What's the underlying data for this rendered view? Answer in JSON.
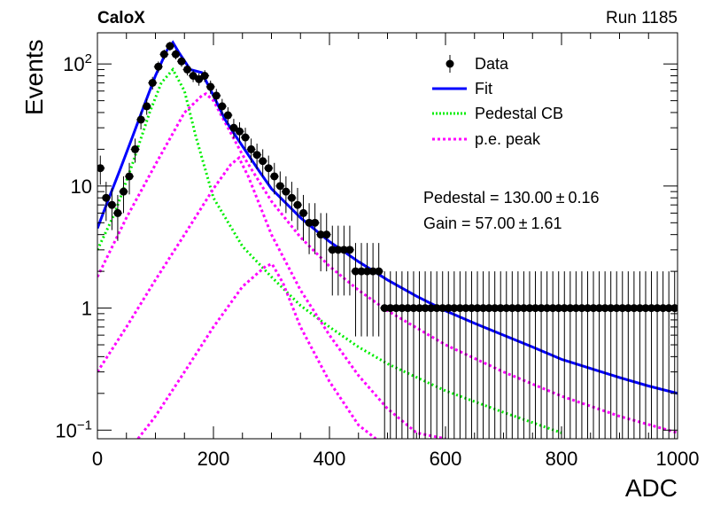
{
  "header": {
    "experiment": "CaloX",
    "run": "Run 1185"
  },
  "colors": {
    "data": "#000000",
    "fit": "#0000ff",
    "pedestal": "#00ee00",
    "pe_peak": "#ff00ff"
  },
  "legend": [
    {
      "label": "Data",
      "style": "marker"
    },
    {
      "label": "Fit",
      "style": "solid"
    },
    {
      "label": "Pedestal CB",
      "style": "dotted-green"
    },
    {
      "label": "p.e. peak",
      "style": "dotted-magenta"
    }
  ],
  "fit_results": {
    "pedestal_label": "Pedestal = 130.00",
    "pedestal_err": "0.16",
    "gain_label": "Gain = 57.00",
    "gain_err": "1.61",
    "pm_symbol": "±"
  },
  "chart_data": {
    "type": "scatter",
    "xlabel": "ADC",
    "ylabel": "Events",
    "xlim": [
      0,
      1000
    ],
    "ylim": [
      0.085,
      180
    ],
    "yscale": "log",
    "grid": false,
    "legend_position": "top-right",
    "x_ticks": [
      "0",
      "200",
      "400",
      "600",
      "800",
      "1000"
    ],
    "y_ticks": [
      {
        "value": 0.1,
        "mantissa": "10",
        "exp": "−1"
      },
      {
        "value": 1,
        "mantissa": "1",
        "exp": ""
      },
      {
        "value": 10,
        "mantissa": "10",
        "exp": ""
      },
      {
        "value": 100,
        "mantissa": "10",
        "exp": "2"
      }
    ],
    "series": [
      {
        "name": "Data",
        "kind": "points",
        "x": [
          5,
          15,
          25,
          35,
          45,
          55,
          65,
          75,
          85,
          95,
          105,
          115,
          125,
          135,
          145,
          155,
          165,
          175,
          185,
          195,
          205,
          215,
          225,
          235,
          245,
          255,
          265,
          275,
          285,
          295,
          305,
          315,
          325,
          335,
          345,
          355,
          365,
          375,
          385,
          395,
          405,
          415,
          425,
          435,
          445,
          455,
          465,
          475,
          485,
          495,
          505,
          515,
          525,
          535,
          545,
          555,
          565,
          575,
          585,
          595,
          605,
          615,
          625,
          635,
          645,
          655,
          665,
          675,
          685,
          695,
          705,
          715,
          725,
          735,
          745,
          755,
          765,
          775,
          785,
          795,
          805,
          815,
          825,
          835,
          845,
          855,
          865,
          875,
          885,
          895,
          905,
          915,
          925,
          935,
          945,
          955,
          965,
          975,
          985,
          995
        ],
        "y": [
          14,
          8,
          7,
          6,
          9,
          12,
          20,
          35,
          45,
          70,
          95,
          120,
          140,
          120,
          105,
          90,
          80,
          75,
          80,
          65,
          55,
          45,
          38,
          30,
          28,
          25,
          20,
          18,
          16,
          14,
          12,
          10,
          9,
          8,
          7,
          6,
          5,
          5,
          4,
          4,
          3,
          3,
          3,
          3,
          2,
          2,
          2,
          2,
          2,
          1,
          1,
          1,
          1,
          1,
          1,
          1,
          1,
          1,
          1,
          1,
          1,
          1,
          1,
          1,
          1,
          1,
          1,
          1,
          1,
          1,
          1,
          1,
          1,
          1,
          1,
          1,
          1,
          1,
          1,
          1,
          1,
          1,
          1,
          1,
          1,
          1,
          1,
          1,
          1,
          1,
          1,
          1,
          1,
          1,
          1,
          1,
          1,
          1,
          1,
          1
        ]
      },
      {
        "name": "Fit",
        "kind": "line",
        "x": [
          0,
          20,
          40,
          60,
          80,
          100,
          120,
          130,
          140,
          160,
          180,
          200,
          220,
          240,
          260,
          280,
          300,
          350,
          400,
          450,
          500,
          550,
          600,
          650,
          700,
          750,
          800,
          850,
          900,
          950,
          1000
        ],
        "y": [
          4.5,
          8,
          14,
          25,
          45,
          80,
          130,
          150,
          125,
          90,
          85,
          55,
          35,
          25,
          18,
          13,
          9.5,
          5.5,
          3.5,
          2.4,
          1.7,
          1.25,
          0.95,
          0.75,
          0.6,
          0.48,
          0.38,
          0.32,
          0.27,
          0.23,
          0.2
        ]
      },
      {
        "name": "Pedestal CB",
        "kind": "dotted",
        "x": [
          0,
          30,
          60,
          90,
          110,
          130,
          150,
          170,
          200,
          250,
          300,
          350,
          400,
          450,
          500,
          600,
          700,
          800
        ],
        "y": [
          3,
          6,
          15,
          40,
          70,
          90,
          60,
          25,
          8,
          3.2,
          1.8,
          1.05,
          0.7,
          0.48,
          0.35,
          0.21,
          0.14,
          0.095
        ]
      },
      {
        "name": "p.e. peak",
        "kind": "dotted",
        "x": [
          0,
          50,
          100,
          150,
          180,
          187,
          200,
          250,
          300,
          350,
          400,
          450,
          500,
          600,
          700,
          800,
          900,
          1000
        ],
        "y": [
          1.8,
          5.5,
          15,
          40,
          55,
          57,
          50,
          18,
          7.5,
          3.8,
          2.2,
          1.4,
          0.95,
          0.5,
          0.3,
          0.19,
          0.13,
          0.095
        ]
      },
      {
        "name": "p.e. peak",
        "kind": "dotted",
        "x": [
          0,
          50,
          100,
          150,
          200,
          230,
          244,
          260,
          300,
          350,
          400,
          450,
          500,
          550,
          600
        ],
        "y": [
          0.3,
          0.7,
          1.7,
          4,
          9.5,
          15,
          17,
          12,
          4,
          1.4,
          0.6,
          0.28,
          0.15,
          0.095,
          0.085
        ]
      },
      {
        "name": "p.e. peak",
        "kind": "dotted",
        "x": [
          70,
          100,
          150,
          200,
          250,
          290,
          301,
          320,
          350,
          400,
          450,
          480
        ],
        "y": [
          0.085,
          0.13,
          0.3,
          0.7,
          1.5,
          2.2,
          2.3,
          1.6,
          0.7,
          0.25,
          0.11,
          0.085
        ]
      }
    ]
  }
}
